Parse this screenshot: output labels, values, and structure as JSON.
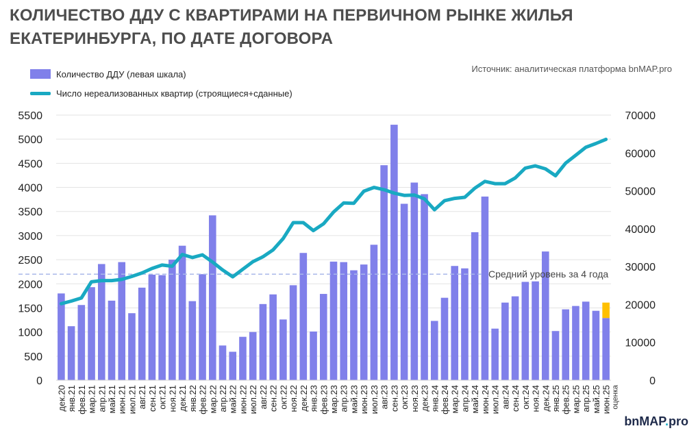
{
  "title": "КОЛИЧЕСТВО ДДУ С КВАРТИРАМИ НА ПЕРВИЧНОМ РЫНКЕ ЖИЛЬЯ ЕКАТЕРИНБУРГА, ПО ДАТЕ ДОГОВОРА",
  "source": "Источник: аналитическая платформа bnMAP.pro",
  "logo": {
    "main": "bnMAP",
    "dot": ".",
    "suffix": "pro"
  },
  "colors": {
    "bars": "#8080ea",
    "line": "#19a9c2",
    "estimate": "#ffc000",
    "avg_line": "#a9b8ea"
  },
  "chart_data": {
    "type": "bar",
    "legend": [
      "Количество ДДУ (левая шкала)",
      "Число нереализованных квартир (строящиеся+сданные)"
    ],
    "legend_placement": "top-left",
    "categories": [
      "дек.20",
      "янв.21",
      "фев.21",
      "мар.21",
      "апр.21",
      "май.21",
      "июн.21",
      "июл.21",
      "авг.21",
      "сен.21",
      "окт.21",
      "ноя.21",
      "дек.21",
      "янв.22",
      "фев.22",
      "мар.22",
      "апр.22",
      "май.22",
      "июн.22",
      "июл.22",
      "авг.22",
      "сен.22",
      "окт.22",
      "ноя.22",
      "дек.22",
      "янв.23",
      "фев.23",
      "мар.23",
      "апр.23",
      "май.23",
      "июн.23",
      "июл.23",
      "авг.23",
      "сен.23",
      "окт.23",
      "ноя.23",
      "дек.23",
      "янв.24",
      "фев.24",
      "мар.24",
      "апр.24",
      "май.24",
      "июн.24",
      "июл.24",
      "авг.24",
      "сен.24",
      "окт.24",
      "ноя.24",
      "дек.24",
      "янв.25",
      "фев.25",
      "мар.25",
      "апр.25",
      "май.25",
      "июн.25"
    ],
    "last_category_note": "оценка",
    "series": [
      {
        "name": "Количество ДДУ (левая шкала)",
        "type": "bar",
        "axis": "left",
        "values": [
          1800,
          1120,
          1560,
          1930,
          2410,
          1650,
          2450,
          1390,
          1920,
          2190,
          2180,
          2500,
          2790,
          1640,
          2200,
          3420,
          720,
          590,
          900,
          1000,
          1580,
          1780,
          1260,
          1970,
          2640,
          1010,
          1790,
          2460,
          2450,
          2280,
          2400,
          2810,
          4460,
          5300,
          3660,
          4100,
          3860,
          1230,
          1710,
          2370,
          2320,
          3070,
          3810,
          1070,
          1610,
          1740,
          2040,
          2050,
          2670,
          1020,
          1470,
          1540,
          1630,
          1440,
          1290
        ],
        "estimate_last": 320
      },
      {
        "name": "Число нереализованных квартир (строящиеся+сданные)",
        "type": "line",
        "axis": "right",
        "values": [
          20200,
          20900,
          21700,
          26000,
          26300,
          26300,
          26600,
          27400,
          28300,
          29500,
          30400,
          30100,
          33200,
          32400,
          33100,
          31200,
          29100,
          27300,
          29300,
          31300,
          32600,
          34400,
          37400,
          41600,
          41600,
          39500,
          41300,
          44400,
          46800,
          46700,
          49900,
          50900,
          50300,
          49400,
          48800,
          48900,
          47900,
          45000,
          47400,
          48000,
          48300,
          50700,
          52500,
          51900,
          51900,
          53400,
          56000,
          56600,
          55800,
          54000,
          57300,
          59400,
          61500,
          62500,
          63600
        ]
      }
    ],
    "ylim_left": [
      0,
      5500
    ],
    "yticks_left": [
      0,
      500,
      1000,
      1500,
      2000,
      2500,
      3000,
      3500,
      4000,
      4500,
      5000,
      5500
    ],
    "ylim_right": [
      0,
      70000
    ],
    "yticks_right": [
      0,
      10000,
      20000,
      30000,
      40000,
      50000,
      60000,
      70000
    ],
    "average_line": {
      "value": 2200,
      "label": "Средний уровень за 4 года"
    },
    "grid": true
  }
}
